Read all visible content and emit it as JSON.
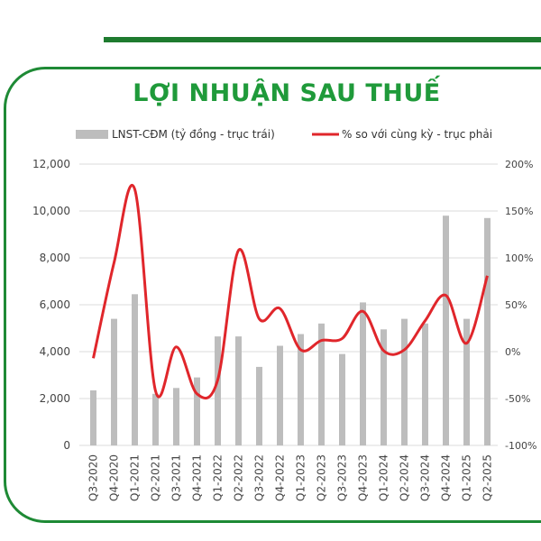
{
  "chart_data": {
    "type": "bar+line",
    "title": "LỢI NHUẬN SAU THUẾ",
    "categories": [
      "Q3-2020",
      "Q4-2020",
      "Q1-2021",
      "Q2-2021",
      "Q3-2021",
      "Q4-2021",
      "Q1-2022",
      "Q2-2022",
      "Q3-2022",
      "Q4-2022",
      "Q1-2023",
      "Q2-2023",
      "Q3-2023",
      "Q4-2023",
      "Q1-2024",
      "Q2-2024",
      "Q3-2024",
      "Q4-2024",
      "Q1-2025",
      "Q2-2025"
    ],
    "series": [
      {
        "name": "LNST-CĐM (tỷ đồng - trục trái)",
        "type": "bar",
        "axis": "left",
        "color": "#bdbdbd",
        "values": [
          2350,
          5400,
          6450,
          2200,
          2450,
          2900,
          4650,
          4650,
          3350,
          4250,
          4750,
          5200,
          3900,
          6100,
          4950,
          5400,
          5200,
          9800,
          5400,
          9700
        ]
      },
      {
        "name": "% so với cùng kỳ - trục phải",
        "type": "line",
        "axis": "right",
        "color": "#e0262b",
        "values": [
          -7,
          95,
          173,
          -42,
          5,
          -45,
          -30,
          108,
          35,
          46,
          2,
          12,
          14,
          43,
          1,
          2,
          33,
          60,
          9,
          81
        ]
      }
    ],
    "left_axis": {
      "ylim": [
        0,
        12000
      ],
      "ticks": [
        "0",
        "2,000",
        "4,000",
        "6,000",
        "8,000",
        "10,000",
        "12,000"
      ]
    },
    "right_axis": {
      "ylim": [
        -100,
        200
      ],
      "ticks": [
        "-100%",
        "-50%",
        "0%",
        "50%",
        "100%",
        "150%",
        "200%"
      ]
    },
    "grid": true,
    "legend": "top"
  }
}
